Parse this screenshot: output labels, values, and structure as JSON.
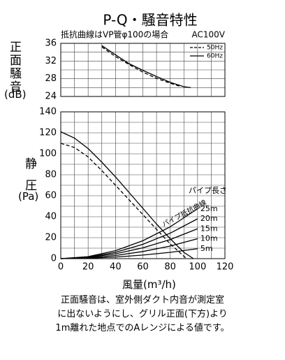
{
  "title": "P-Q・騒音特性",
  "chart_data": [
    {
      "type": "line",
      "ylabel": "正面騒音",
      "yunit": "(dB)",
      "note": "抵抗曲線はVP管φ100の場合",
      "power": "AC100V",
      "xlim": [
        0,
        120
      ],
      "ylim": [
        24,
        36
      ],
      "yticks": [
        24,
        28,
        32,
        36
      ],
      "xgrid": [
        0,
        10,
        20,
        30,
        40,
        50,
        60,
        70,
        80,
        90,
        100,
        110,
        120
      ],
      "ygrid": [
        24,
        26,
        28,
        30,
        32,
        34,
        36
      ],
      "legend": "upper right",
      "series": [
        {
          "name": "50Hz",
          "style": "dashed",
          "color": "#000",
          "x": [
            30,
            40,
            50,
            60,
            70,
            80,
            88
          ],
          "values": [
            35.2,
            33,
            31.2,
            29.5,
            28.1,
            27,
            26.2
          ]
        },
        {
          "name": "60Hz",
          "style": "solid",
          "color": "#000",
          "x": [
            30,
            40,
            50,
            60,
            70,
            80,
            90,
            95
          ],
          "values": [
            35.5,
            33.4,
            31.4,
            29.9,
            28.5,
            27.2,
            26.2,
            26
          ]
        }
      ]
    },
    {
      "type": "line",
      "ylabel": "静圧",
      "yunit": "(Pa)",
      "xlabel": "風量(m³/h)",
      "xlim": [
        0,
        120
      ],
      "ylim": [
        0,
        140
      ],
      "xticks": [
        0,
        20,
        40,
        60,
        80,
        100,
        120
      ],
      "yticks": [
        0,
        20,
        40,
        60,
        80,
        100,
        120,
        140
      ],
      "xgrid": [
        0,
        10,
        20,
        30,
        40,
        50,
        60,
        70,
        80,
        90,
        100,
        110,
        120
      ],
      "ygrid": [
        0,
        10,
        20,
        30,
        40,
        50,
        60,
        70,
        80,
        90,
        100,
        110,
        120,
        130,
        140
      ],
      "series": [
        {
          "style": "dashed",
          "color": "#000",
          "x": [
            0,
            10,
            20,
            30,
            40,
            50,
            60,
            70,
            80,
            92
          ],
          "values": [
            110,
            106,
            97,
            84,
            70,
            56,
            42,
            28,
            14,
            0
          ]
        },
        {
          "style": "solid",
          "color": "#000",
          "x": [
            0,
            10,
            20,
            30,
            40,
            50,
            60,
            70,
            80,
            90,
            97
          ],
          "values": [
            121,
            115,
            105,
            92,
            78,
            63,
            48,
            33,
            19,
            6,
            0
          ]
        }
      ],
      "pipe_title": "パイプ長さ",
      "curve_label": "パイプ抵抗曲線",
      "pipes": [
        {
          "name": "25m",
          "color": "#000",
          "x": [
            0,
            20,
            40,
            60,
            80,
            100
          ],
          "values": [
            0,
            1.9,
            7.6,
            17.1,
            30.4,
            47.5
          ]
        },
        {
          "name": "20m",
          "color": "#000",
          "x": [
            0,
            20,
            40,
            60,
            80,
            100
          ],
          "values": [
            0,
            1.5,
            6,
            13.7,
            24.3,
            38
          ]
        },
        {
          "name": "15m",
          "color": "#000",
          "x": [
            0,
            20,
            40,
            60,
            80,
            100
          ],
          "values": [
            0,
            1.2,
            4.6,
            10.3,
            18.2,
            28.5
          ]
        },
        {
          "name": "10m",
          "color": "#000",
          "x": [
            0,
            20,
            40,
            60,
            80,
            100
          ],
          "values": [
            0,
            0.8,
            3,
            6.8,
            12,
            19
          ]
        },
        {
          "name": "5m",
          "color": "#000",
          "x": [
            0,
            20,
            40,
            60,
            80,
            100
          ],
          "values": [
            0,
            0.4,
            1.5,
            3.4,
            6,
            9.5
          ]
        }
      ]
    }
  ],
  "note": [
    "正面騒音は、室外側ダクト内音が測定室",
    "に出ないようにし、グリル正面(下方)より",
    "1m離れた地点でのAレンジによる値です。"
  ]
}
